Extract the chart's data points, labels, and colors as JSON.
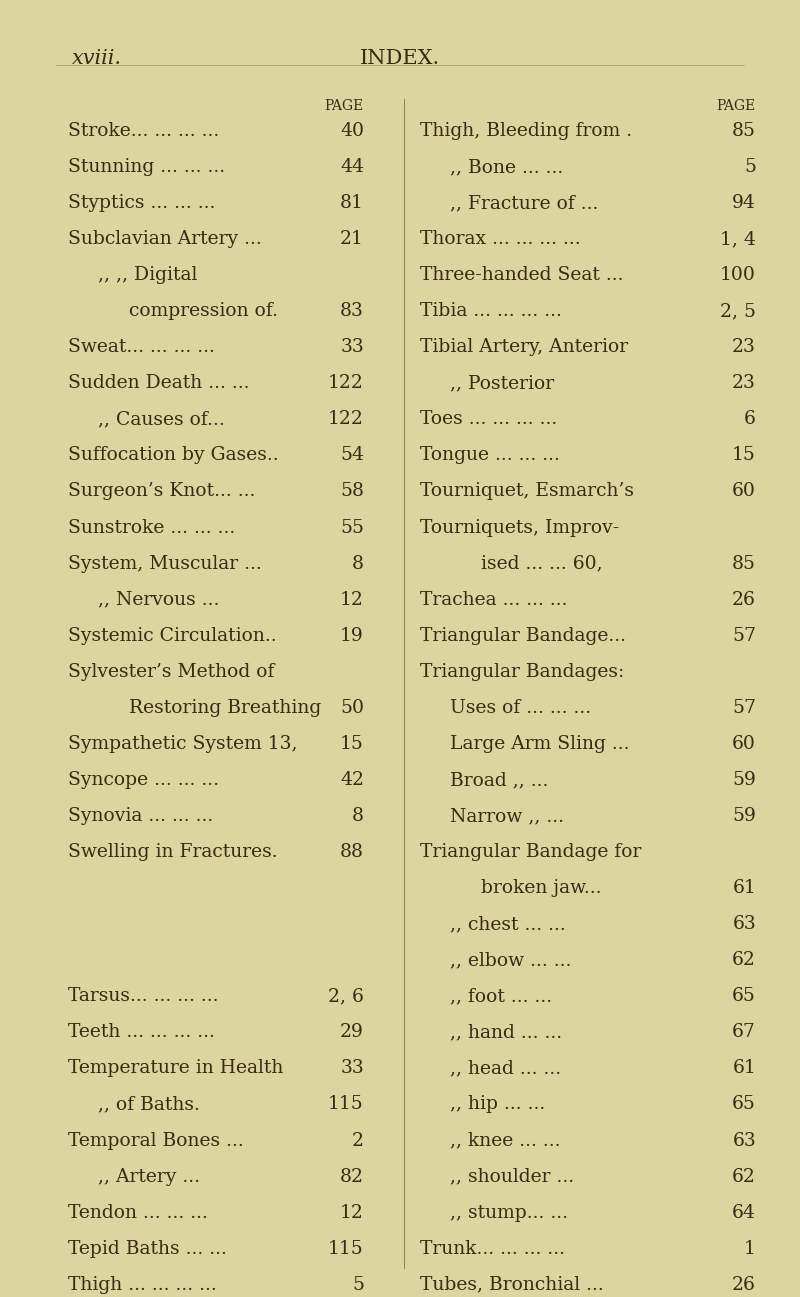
{
  "bg_color": "#ddd5a0",
  "text_color": "#3a2a15",
  "page_header_left": "xviii.",
  "page_header_center": "INDEX.",
  "fig_width": 8.0,
  "fig_height": 12.97,
  "font_size": 13.5,
  "small_font_size": 10.0,
  "header_font_size": 15.0,
  "left_entries": [
    {
      "text": "Stroke... ... ... ...",
      "page": "40",
      "indent": 0
    },
    {
      "text": "Stunning ... ... ...",
      "page": "44",
      "indent": 0
    },
    {
      "text": "Styptics ... ... ...",
      "page": "81",
      "indent": 0
    },
    {
      "text": "Subclavian Artery ...",
      "page": "21",
      "indent": 0
    },
    {
      "text": ",, ,, Digital",
      "page": "",
      "indent": 1
    },
    {
      "text": "compression of.",
      "page": "83",
      "indent": 2
    },
    {
      "text": "Sweat... ... ... ...",
      "page": "33",
      "indent": 0
    },
    {
      "text": "Sudden Death ... ...",
      "page": "122",
      "indent": 0
    },
    {
      "text": ",, Causes of...",
      "page": "122",
      "indent": 1
    },
    {
      "text": "Suffocation by Gases..",
      "page": "54",
      "indent": 0
    },
    {
      "text": "Surgeon’s Knot... ...",
      "page": "58",
      "indent": 0
    },
    {
      "text": "Sunstroke ... ... ...",
      "page": "55",
      "indent": 0
    },
    {
      "text": "System, Muscular ...",
      "page": "8",
      "indent": 0
    },
    {
      "text": ",, Nervous ...",
      "page": "12",
      "indent": 1
    },
    {
      "text": "Systemic Circulation..",
      "page": "19",
      "indent": 0
    },
    {
      "text": "Sylvester’s Method of",
      "page": "",
      "indent": 0
    },
    {
      "text": "Restoring Breathing",
      "page": "50",
      "indent": 2
    },
    {
      "text": "Sympathetic System 13,",
      "page": "15",
      "indent": 0
    },
    {
      "text": "Syncope ... ... ...",
      "page": "42",
      "indent": 0
    },
    {
      "text": "Synovia ... ... ...",
      "page": "8",
      "indent": 0
    },
    {
      "text": "Swelling in Fractures.",
      "page": "88",
      "indent": 0
    },
    {
      "text": "",
      "page": "",
      "indent": 0
    },
    {
      "text": "",
      "page": "",
      "indent": 0
    },
    {
      "text": "",
      "page": "",
      "indent": 0
    },
    {
      "text": "Tarsus... ... ... ...",
      "page": "2, 6",
      "indent": 0
    },
    {
      "text": "Teeth ... ... ... ...",
      "page": "29",
      "indent": 0
    },
    {
      "text": "Temperature in Health",
      "page": "33",
      "indent": 0
    },
    {
      "text": ",, of Baths.",
      "page": "115",
      "indent": 1
    },
    {
      "text": "Temporal Bones ...",
      "page": "2",
      "indent": 0
    },
    {
      "text": ",, Artery ...",
      "page": "82",
      "indent": 1
    },
    {
      "text": "Tendon ... ... ...",
      "page": "12",
      "indent": 0
    },
    {
      "text": "Tepid Baths ... ...",
      "page": "115",
      "indent": 0
    },
    {
      "text": "Thigh ... ... ... ...",
      "page": "5",
      "indent": 0
    }
  ],
  "right_entries": [
    {
      "text": "Thigh, Bleeding from .",
      "page": "85",
      "indent": 0
    },
    {
      "text": ",, Bone ... ...",
      "page": "5",
      "indent": 1
    },
    {
      "text": ",, Fracture of ...",
      "page": "94",
      "indent": 1
    },
    {
      "text": "Thorax ... ... ... ...",
      "page": "1, 4",
      "indent": 0
    },
    {
      "text": "Three-handed Seat ...",
      "page": "100",
      "indent": 0
    },
    {
      "text": "Tibia ... ... ... ...",
      "page": "2, 5",
      "indent": 0
    },
    {
      "text": "Tibial Artery, Anterior",
      "page": "23",
      "indent": 0
    },
    {
      "text": ",, Posterior",
      "page": "23",
      "indent": 1
    },
    {
      "text": "Toes ... ... ... ...",
      "page": "6",
      "indent": 0
    },
    {
      "text": "Tongue ... ... ...",
      "page": "15",
      "indent": 0
    },
    {
      "text": "Tourniquet, Esmarch’s",
      "page": "60",
      "indent": 0
    },
    {
      "text": "Tourniquets, Improv-",
      "page": "",
      "indent": 0
    },
    {
      "text": "ised ... ... 60,",
      "page": "85",
      "indent": 2
    },
    {
      "text": "Trachea ... ... ...",
      "page": "26",
      "indent": 0
    },
    {
      "text": "Triangular Bandage...",
      "page": "57",
      "indent": 0
    },
    {
      "text": "Triangular Bandages:",
      "page": "",
      "indent": 0
    },
    {
      "text": "Uses of ... ... ...",
      "page": "57",
      "indent": 1
    },
    {
      "text": "Large Arm Sling ...",
      "page": "60",
      "indent": 1
    },
    {
      "text": "Broad ,, ...",
      "page": "59",
      "indent": 1
    },
    {
      "text": "Narrow ,, ...",
      "page": "59",
      "indent": 1
    },
    {
      "text": "Triangular Bandage for",
      "page": "",
      "indent": 0
    },
    {
      "text": "broken jaw...",
      "page": "61",
      "indent": 2
    },
    {
      "text": ",, chest ... ...",
      "page": "63",
      "indent": 1
    },
    {
      "text": ",, elbow ... ...",
      "page": "62",
      "indent": 1
    },
    {
      "text": ",, foot ... ...",
      "page": "65",
      "indent": 1
    },
    {
      "text": ",, hand ... ...",
      "page": "67",
      "indent": 1
    },
    {
      "text": ",, head ... ...",
      "page": "61",
      "indent": 1
    },
    {
      "text": ",, hip ... ...",
      "page": "65",
      "indent": 1
    },
    {
      "text": ",, knee ... ...",
      "page": "63",
      "indent": 1
    },
    {
      "text": ",, shoulder ...",
      "page": "62",
      "indent": 1
    },
    {
      "text": ",, stump... ...",
      "page": "64",
      "indent": 1
    },
    {
      "text": "Trunk... ... ... ...",
      "page": "1",
      "indent": 0
    },
    {
      "text": "Tubes, Bronchial ...",
      "page": "26",
      "indent": 0
    }
  ]
}
